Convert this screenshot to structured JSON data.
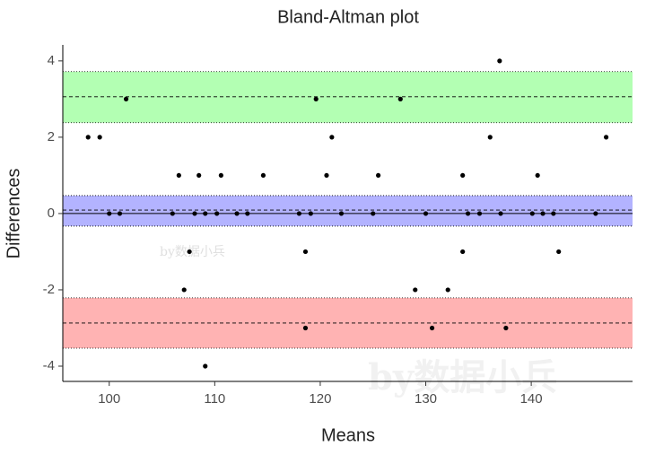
{
  "chart_data": {
    "type": "scatter",
    "title": "Bland-Altman plot",
    "x_label": "Means",
    "y_label": "Differences",
    "series": [
      {
        "color": "#000000",
        "x": [
          98.0,
          99.1,
          101.6,
          100.0,
          101.0,
          106.6,
          106.0,
          107.1,
          107.6,
          108.1,
          108.5,
          109.1,
          109.1,
          110.2,
          110.6,
          112.1,
          113.1,
          114.6,
          118.0,
          118.6,
          118.6,
          119.1,
          119.6,
          120.6,
          121.1,
          122.0,
          125.0,
          125.5,
          127.6,
          129.0,
          130.0,
          130.6,
          132.1,
          133.5,
          133.5,
          134.0,
          135.1,
          136.1,
          137.0,
          137.1,
          137.6,
          140.1,
          140.6,
          141.1,
          142.1,
          142.6,
          146.1,
          147.1
        ],
        "values": [
          2,
          2,
          3,
          0,
          0,
          1,
          0,
          -2,
          -1,
          0,
          1,
          0,
          -4,
          0,
          1,
          0,
          0,
          1,
          0,
          -1,
          -3,
          0,
          3,
          1,
          2,
          0,
          0,
          1,
          3,
          -2,
          0,
          -3,
          -2,
          1,
          -1,
          0,
          0,
          2,
          4,
          0,
          -3,
          0,
          1,
          0,
          0,
          -1,
          0,
          2
        ]
      }
    ],
    "bands": [
      {
        "color": "#b3ffb3",
        "lower": 2.38,
        "upper": 3.72,
        "mean": 3.06
      },
      {
        "color": "#b3b3ff",
        "lower": -0.33,
        "upper": 0.47,
        "mean": 0.09
      },
      {
        "color": "#ffb3b3",
        "lower": -3.53,
        "upper": -2.21,
        "mean": -2.87
      }
    ],
    "hline": 0,
    "xlim": [
      95.6,
      149.6
    ],
    "ylim": [
      -4.4,
      4.42
    ],
    "xticks": [
      100,
      110,
      120,
      130,
      140
    ],
    "yticks": [
      -4,
      -2,
      0,
      2,
      4
    ],
    "grid": false,
    "watermarks": [
      "by数据小兵",
      "by数据小兵"
    ]
  }
}
